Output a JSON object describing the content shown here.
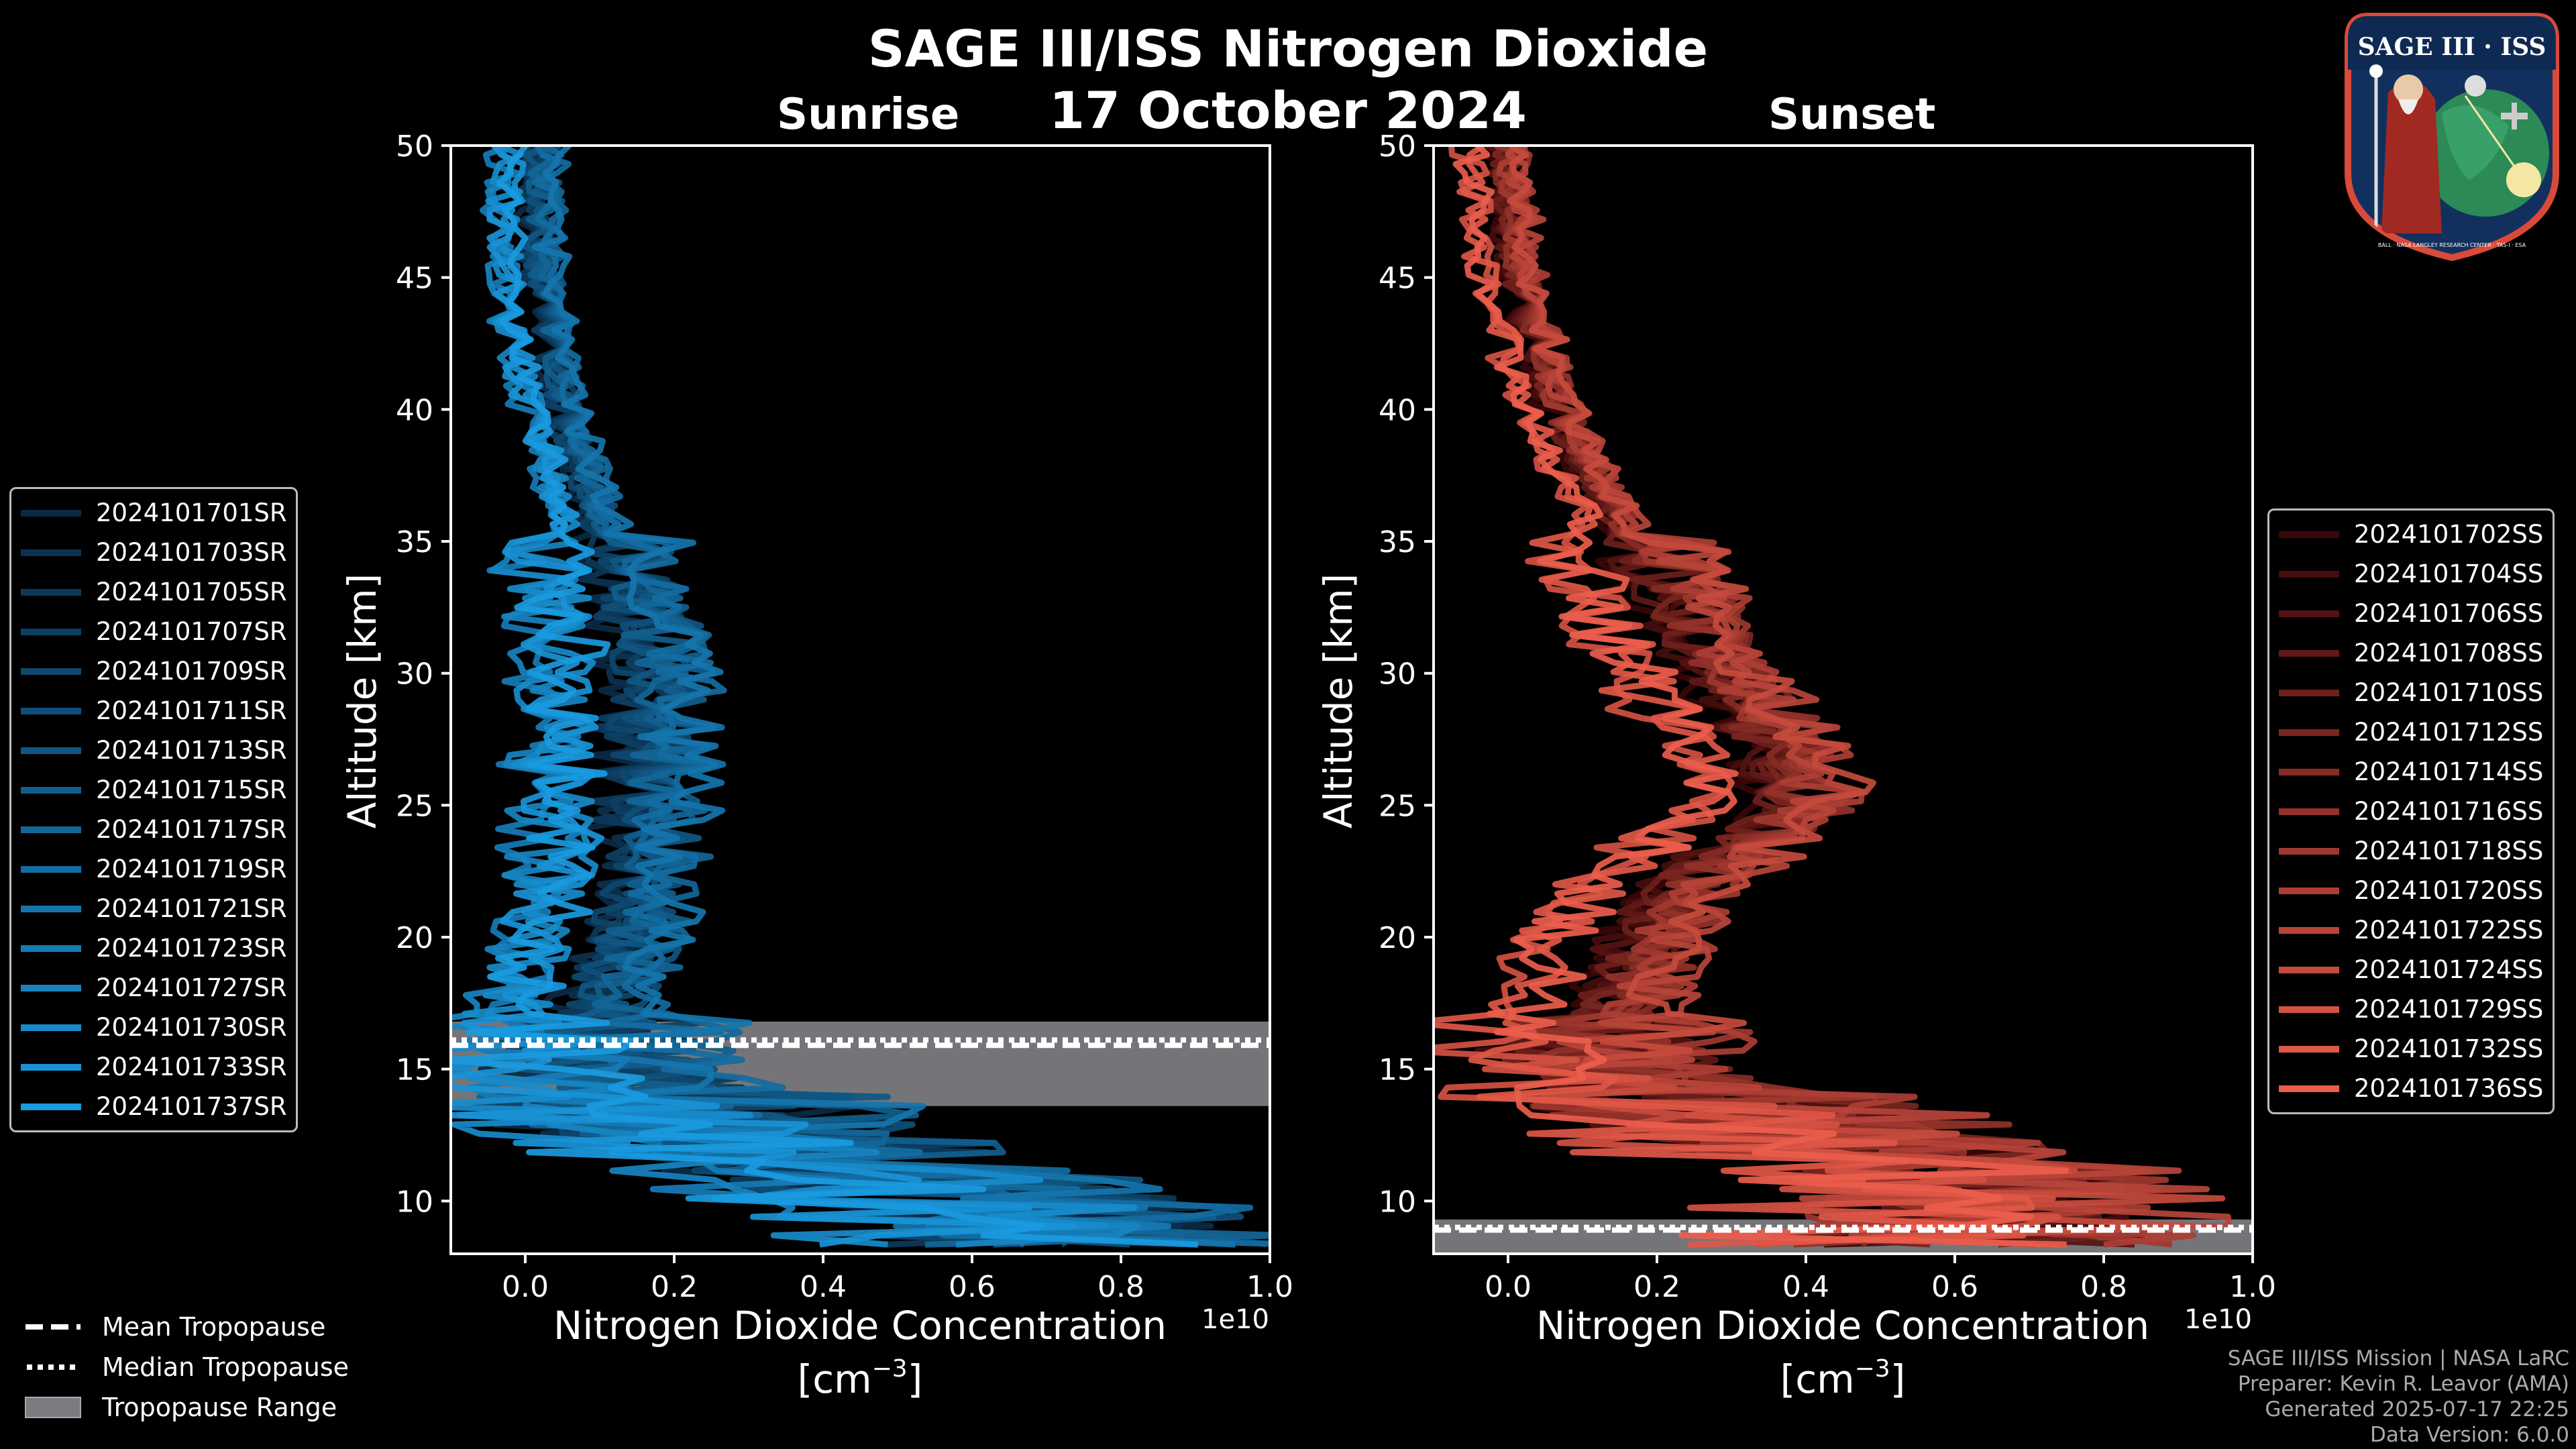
{
  "title": "SAGE III/ISS Nitrogen Dioxide",
  "date": "17 October 2024",
  "logo": {
    "top": "SAGE III · ISS",
    "bottom": "BALL · NASA LANGLEY RESEARCH CENTER · TAS-I · ESA"
  },
  "colors": {
    "sunrise": "#1a9ae0",
    "sunset": "#ec5d4c",
    "tropopause": "#7b7b80"
  },
  "tropo_legend": [
    {
      "style": "dashed",
      "label": "Mean Tropopause"
    },
    {
      "style": "dotted",
      "label": "Median Tropopause"
    },
    {
      "style": "range",
      "label": "Tropopause Range"
    }
  ],
  "footer": [
    "SAGE III/ISS Mission | NASA LaRC",
    "Preparer: Kevin R. Leavor (AMA)",
    "Generated 2025-07-17 22:25",
    "Data Version: 6.0.0"
  ],
  "chart_data": [
    {
      "type": "line",
      "title": "Sunrise",
      "xlabel": "Nitrogen Dioxide Concentration",
      "xlabel_units": "[cm",
      "xlabel_exp": "−3",
      "xlabel_close": "]",
      "offset_text": "1e10",
      "ylabel": "Altitude [km]",
      "xlim": [
        -0.1,
        1.0
      ],
      "ylim": [
        8,
        50
      ],
      "xticks": [
        0.0,
        0.2,
        0.4,
        0.6,
        0.8,
        1.0
      ],
      "xtick_labels": [
        "0.0",
        "0.2",
        "0.4",
        "0.6",
        "0.8",
        "1.0"
      ],
      "yticks": [
        10,
        15,
        20,
        25,
        30,
        35,
        40,
        45,
        50
      ],
      "ytick_labels": [
        "10",
        "15",
        "20",
        "25",
        "30",
        "35",
        "40",
        "45",
        "50"
      ],
      "tropopause": {
        "mean": 15.9,
        "median": 16.1,
        "min": 13.6,
        "max": 16.8
      },
      "profile_shape": {
        "altitudes": [
          50,
          45,
          40,
          35,
          30,
          25,
          22,
          20,
          17,
          15,
          13,
          11,
          9
        ],
        "mean": [
          0.0,
          0.0,
          0.03,
          0.09,
          0.12,
          0.11,
          0.11,
          0.09,
          0.05,
          0.07,
          0.18,
          0.45,
          0.7
        ]
      },
      "series": [
        {
          "name": "2024101701SR"
        },
        {
          "name": "2024101703SR"
        },
        {
          "name": "2024101705SR"
        },
        {
          "name": "2024101707SR"
        },
        {
          "name": "2024101709SR"
        },
        {
          "name": "2024101711SR"
        },
        {
          "name": "2024101713SR"
        },
        {
          "name": "2024101715SR"
        },
        {
          "name": "2024101717SR"
        },
        {
          "name": "2024101719SR"
        },
        {
          "name": "2024101721SR"
        },
        {
          "name": "2024101723SR"
        },
        {
          "name": "2024101727SR"
        },
        {
          "name": "2024101730SR"
        },
        {
          "name": "2024101733SR"
        },
        {
          "name": "2024101737SR"
        }
      ]
    },
    {
      "type": "line",
      "title": "Sunset",
      "xlabel": "Nitrogen Dioxide Concentration",
      "xlabel_units": "[cm",
      "xlabel_exp": "−3",
      "xlabel_close": "]",
      "offset_text": "1e10",
      "ylabel": "Altitude [km]",
      "xlim": [
        -0.1,
        1.0
      ],
      "ylim": [
        8,
        50
      ],
      "xticks": [
        0.0,
        0.2,
        0.4,
        0.6,
        0.8,
        1.0
      ],
      "xtick_labels": [
        "0.0",
        "0.2",
        "0.4",
        "0.6",
        "0.8",
        "1.0"
      ],
      "yticks": [
        10,
        15,
        20,
        25,
        30,
        35,
        40,
        45,
        50
      ],
      "ytick_labels": [
        "10",
        "15",
        "20",
        "25",
        "30",
        "35",
        "40",
        "45",
        "50"
      ],
      "tropopause": {
        "mean": 8.9,
        "median": 9.0,
        "min": 8.0,
        "max": 9.3
      },
      "profile_shape": {
        "altitudes": [
          50,
          45,
          40,
          35,
          30,
          27,
          25,
          22,
          20,
          17,
          15,
          13,
          11,
          9
        ],
        "mean": [
          -0.02,
          0.0,
          0.05,
          0.15,
          0.25,
          0.33,
          0.35,
          0.2,
          0.15,
          0.1,
          0.1,
          0.3,
          0.55,
          0.6
        ]
      },
      "series": [
        {
          "name": "2024101702SS"
        },
        {
          "name": "2024101704SS"
        },
        {
          "name": "2024101706SS"
        },
        {
          "name": "2024101708SS"
        },
        {
          "name": "2024101710SS"
        },
        {
          "name": "2024101712SS"
        },
        {
          "name": "2024101714SS"
        },
        {
          "name": "2024101716SS"
        },
        {
          "name": "2024101718SS"
        },
        {
          "name": "2024101720SS"
        },
        {
          "name": "2024101722SS"
        },
        {
          "name": "2024101724SS"
        },
        {
          "name": "2024101729SS"
        },
        {
          "name": "2024101732SS"
        },
        {
          "name": "2024101736SS"
        }
      ]
    }
  ]
}
